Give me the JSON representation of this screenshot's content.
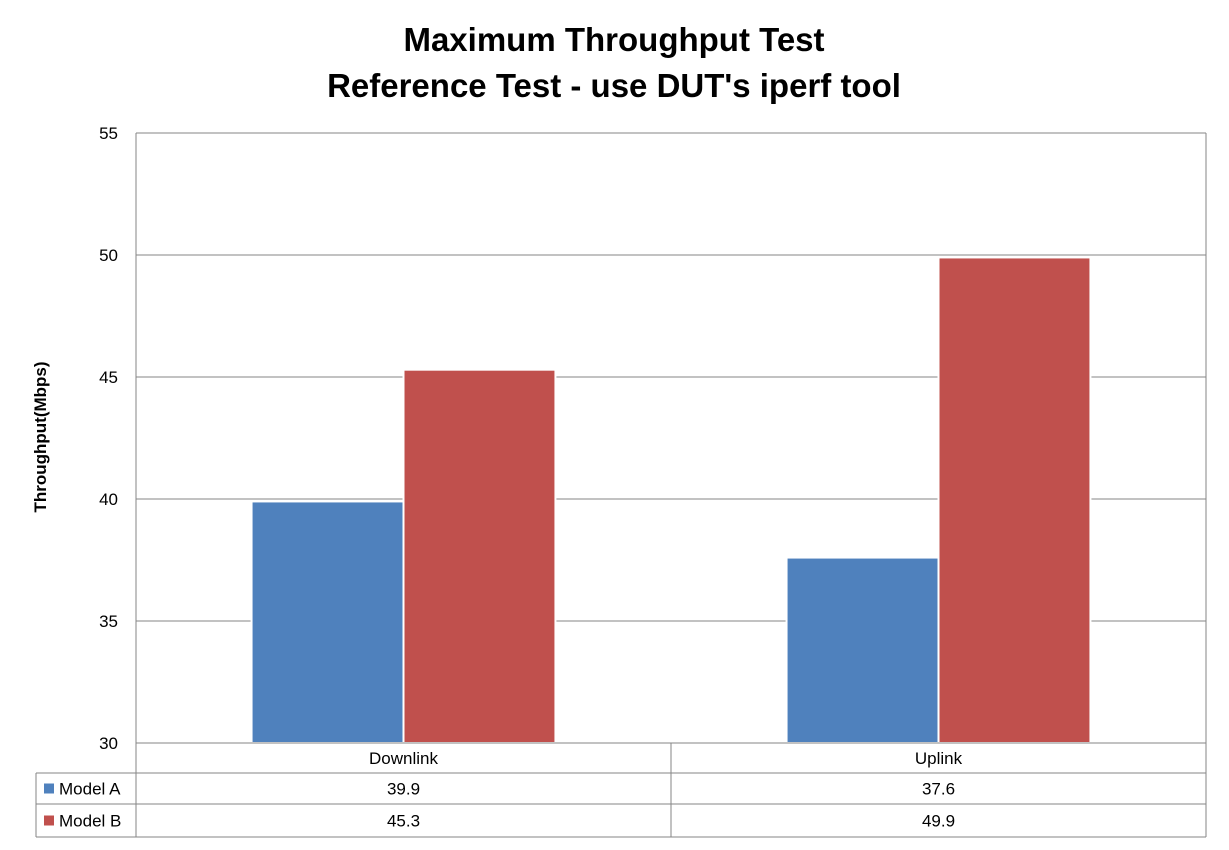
{
  "chart_data": {
    "type": "bar",
    "title": [
      "Maximum Throughput Test",
      "Reference Test - use DUT's iperf tool"
    ],
    "xlabel": "",
    "ylabel": "Throughput(Mbps)",
    "ylim": [
      30,
      55
    ],
    "yticks": [
      30,
      35,
      40,
      45,
      50,
      55
    ],
    "categories": [
      "Downlink",
      "Uplink"
    ],
    "series": [
      {
        "name": "Model A",
        "color": "#4F81BD",
        "values": [
          39.9,
          37.6
        ],
        "labels": [
          "39.9",
          "37.6"
        ]
      },
      {
        "name": "Model B",
        "color": "#C0504D",
        "values": [
          45.3,
          49.9
        ],
        "labels": [
          "45.3",
          "49.9"
        ]
      }
    ],
    "grid": true,
    "legend": "data-table"
  }
}
